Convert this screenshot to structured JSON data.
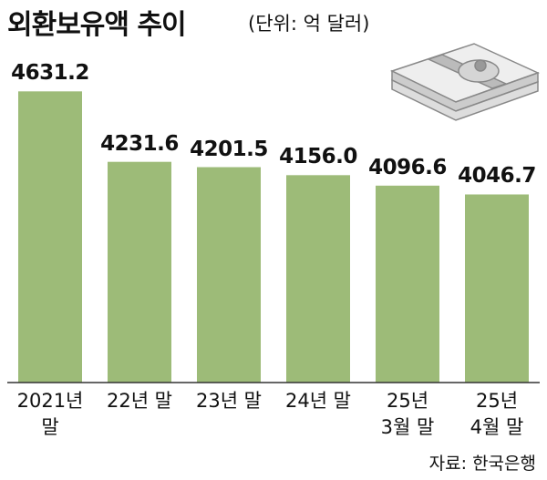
{
  "chart_data": {
    "type": "bar",
    "title": "외환보유액 추이",
    "subtitle": "(단위: 억 달러)",
    "categories": [
      "2021년\n말",
      "22년 말",
      "23년 말",
      "24년 말",
      "25년\n3월 말",
      "25년\n4월 말"
    ],
    "values": [
      4631.2,
      4231.6,
      4201.5,
      4156.0,
      4096.6,
      4046.7
    ],
    "value_labels": [
      "4631.2",
      "4231.6",
      "4201.5",
      "4156.0",
      "4096.6",
      "4046.7"
    ],
    "color": "#9dbb78",
    "ylim": [
      2980,
      4700
    ],
    "source": "자료: 한국은행"
  }
}
